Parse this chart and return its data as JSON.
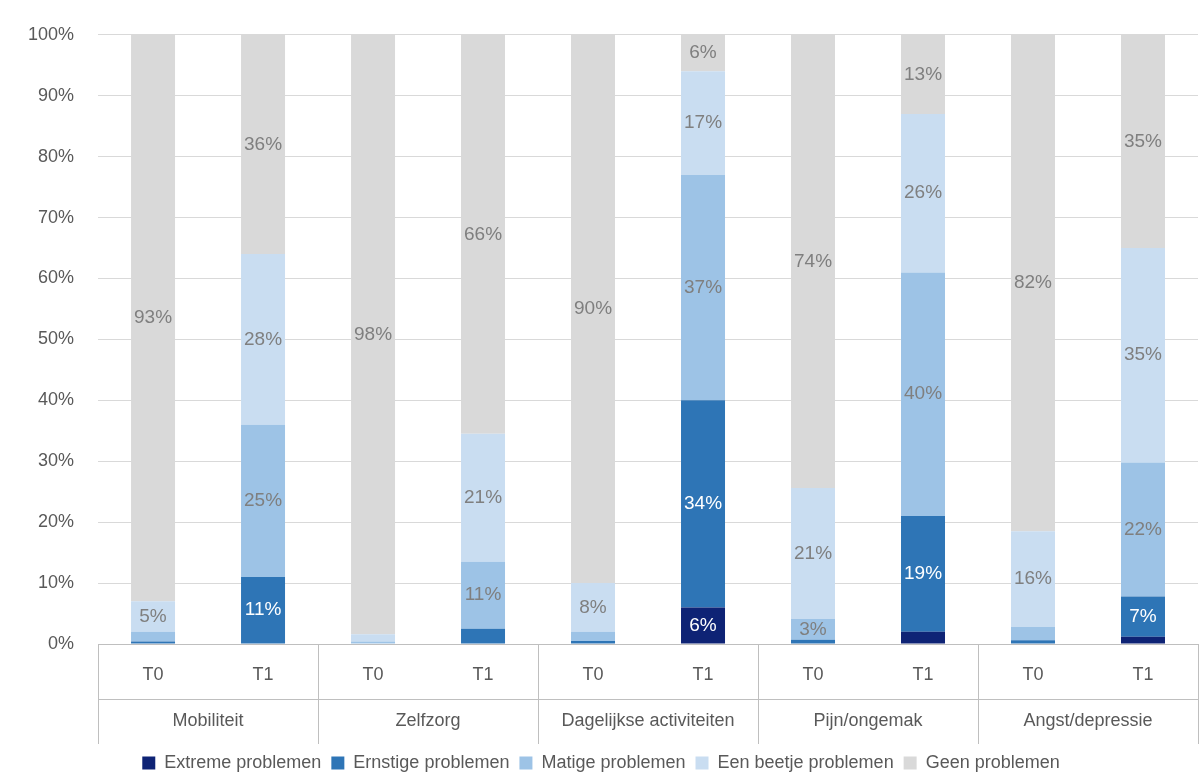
{
  "chart_data": {
    "type": "bar",
    "stacked": true,
    "categories": [
      "T0",
      "T1",
      "T0",
      "T1",
      "T0",
      "T1",
      "T0",
      "T1",
      "T0",
      "T1"
    ],
    "annotations": [
      "Mobiliteit",
      "Zelfzorg",
      "Dagelijkse activiteiten",
      "Pijn/ongemak",
      "Angst/depressie"
    ],
    "series": [
      {
        "name": "Extreme problemen",
        "color": "#0e2375",
        "values": [
          0,
          0,
          0,
          0,
          0,
          6,
          0,
          2,
          0,
          1.2
        ],
        "value_labels": [
          null,
          null,
          null,
          null,
          null,
          "6%",
          null,
          null,
          null,
          null
        ]
      },
      {
        "name": "Ernstige problemen",
        "color": "#2e75b6",
        "values": [
          0.4,
          11,
          0,
          2.5,
          0.5,
          34,
          0.7,
          19,
          0.6,
          6.6
        ],
        "value_labels": [
          null,
          "11%",
          null,
          null,
          null,
          "34%",
          null,
          "19%",
          null,
          "7%"
        ]
      },
      {
        "name": "Matige problemen",
        "color": "#9dc3e6",
        "values": [
          1.6,
          25,
          0.4,
          11,
          1.5,
          37,
          3.4,
          40,
          2.2,
          22
        ],
        "value_labels": [
          null,
          "25%",
          null,
          "11%",
          null,
          "37%",
          "3%",
          "40%",
          null,
          "22%"
        ]
      },
      {
        "name": "Een beetje problemen",
        "color": "#c9ddf1",
        "values": [
          5,
          28,
          1.2,
          21,
          8,
          17,
          21.5,
          26,
          15.7,
          35.2
        ],
        "value_labels": [
          "5%",
          "28%",
          null,
          "21%",
          "8%",
          "17%",
          "21%",
          "26%",
          "16%",
          "35%"
        ]
      },
      {
        "name": "Geen problemen",
        "color": "#d9d9d9",
        "values": [
          93,
          36,
          98.4,
          65.5,
          90,
          6,
          74.4,
          13,
          81.5,
          35
        ],
        "value_labels": [
          "93%",
          "36%",
          "98%",
          "66%",
          "90%",
          "6%",
          "74%",
          "13%",
          "82%",
          "35%"
        ]
      }
    ],
    "ylim": [
      0,
      100
    ],
    "yticks": [
      {
        "value": 0,
        "label": "0%"
      },
      {
        "value": 10,
        "label": "10%"
      },
      {
        "value": 20,
        "label": "20%"
      },
      {
        "value": 30,
        "label": "30%"
      },
      {
        "value": 40,
        "label": "40%"
      },
      {
        "value": 50,
        "label": "50%"
      },
      {
        "value": 60,
        "label": "60%"
      },
      {
        "value": 70,
        "label": "70%"
      },
      {
        "value": 80,
        "label": "80%"
      },
      {
        "value": 90,
        "label": "90%"
      },
      {
        "value": 100,
        "label": "100%"
      }
    ],
    "grid": "y",
    "legend": "bottom"
  }
}
